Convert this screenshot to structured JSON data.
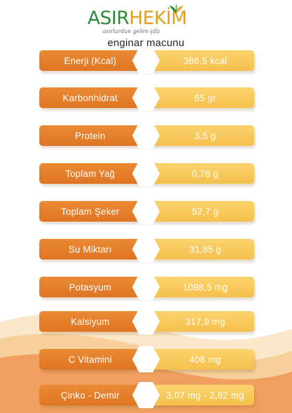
{
  "brand": {
    "logo_part1": "ASIR",
    "logo_part2": "HEKİM",
    "tagline": "asırlardan gelen şifa"
  },
  "product_name": "enginar macunu",
  "colors": {
    "label_orange": "#e47e2c",
    "value_yellow": "#f8c95a",
    "logo_green": "#2f8a3c",
    "logo_gold": "#e0a21e",
    "wave_orange": "#efa060",
    "wave_light": "#fbe7c9"
  },
  "nutrition": [
    {
      "label": "Enerji (Kcal)",
      "value": "386,5 kcal"
    },
    {
      "label": "Karbonhidrat",
      "value": "65 gr"
    },
    {
      "label": "Protein",
      "value": "3,5 g"
    },
    {
      "label": "Toplam Yağ",
      "value": "0,78 g"
    },
    {
      "label": "Toplam Şeker",
      "value": "52,7 g"
    },
    {
      "label": "Su Miktarı",
      "value": "31,85 g"
    },
    {
      "label": "Potasyum",
      "value": "1098,5 mg"
    },
    {
      "label": "Kalsiyum",
      "value": "317,9 mg"
    },
    {
      "label": "C Vitamini",
      "value": "408 mg"
    },
    {
      "label": "Çinko - Demir",
      "value": "3,07  mg - 2,82 mg"
    }
  ]
}
